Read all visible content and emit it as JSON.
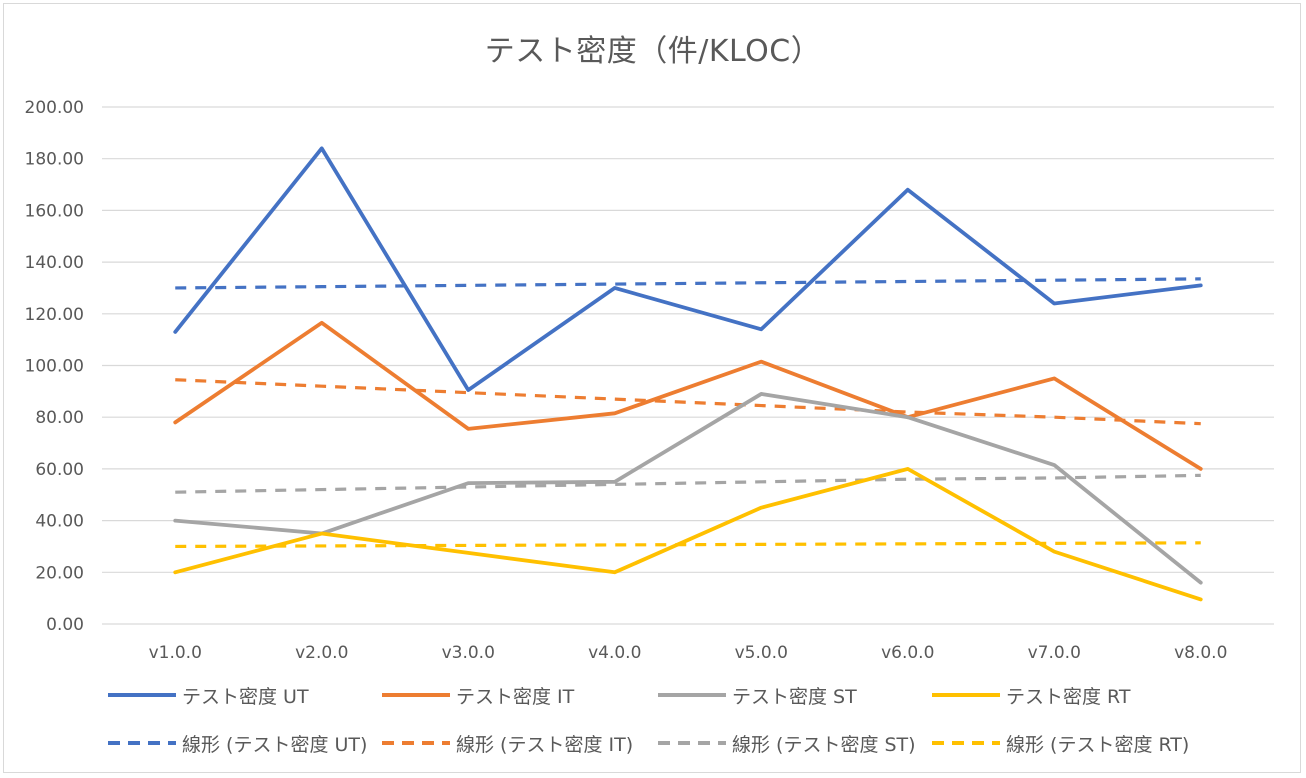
{
  "chart_data": {
    "type": "line",
    "title": "テスト密度（件/KLOC）",
    "xlabel": "",
    "ylabel": "",
    "categories": [
      "v1.0.0",
      "v2.0.0",
      "v3.0.0",
      "v4.0.0",
      "v5.0.0",
      "v6.0.0",
      "v7.0.0",
      "v8.0.0"
    ],
    "ylim": [
      0,
      200
    ],
    "yticks": [
      "0.00",
      "20.00",
      "40.00",
      "60.00",
      "80.00",
      "100.00",
      "120.00",
      "140.00",
      "160.00",
      "180.00",
      "200.00"
    ],
    "grid": true,
    "legend_position": "bottom",
    "series": [
      {
        "name": "テスト密度 UT",
        "color": "#4472c4",
        "style": "solid",
        "values": [
          113,
          184,
          90.5,
          130,
          114,
          168,
          124,
          131
        ]
      },
      {
        "name": "テスト密度 IT",
        "color": "#ed7d31",
        "style": "solid",
        "values": [
          78,
          116.5,
          75.5,
          81.5,
          101.5,
          80,
          95,
          60
        ]
      },
      {
        "name": "テスト密度 ST",
        "color": "#a5a5a5",
        "style": "solid",
        "values": [
          40,
          35,
          54.5,
          55,
          89,
          80,
          61.5,
          16
        ]
      },
      {
        "name": "テスト密度 RT",
        "color": "#ffc000",
        "style": "solid",
        "values": [
          20,
          35,
          27.5,
          20,
          45,
          60,
          28,
          9.5
        ]
      },
      {
        "name": "線形 (テスト密度 UT)",
        "color": "#4472c4",
        "style": "dashed",
        "values": [
          130,
          130.5,
          131,
          131.5,
          132,
          132.5,
          133,
          133.5
        ]
      },
      {
        "name": "線形 (テスト密度 IT)",
        "color": "#ed7d31",
        "style": "dashed",
        "values": [
          94.5,
          92,
          89.5,
          87,
          84.5,
          82,
          80,
          77.5
        ]
      },
      {
        "name": "線形 (テスト密度 ST)",
        "color": "#a5a5a5",
        "style": "dashed",
        "values": [
          51,
          52,
          53,
          54,
          55,
          56,
          56.5,
          57.5
        ]
      },
      {
        "name": "線形 (テスト密度 RT)",
        "color": "#ffc000",
        "style": "dashed",
        "values": [
          30,
          30.2,
          30.4,
          30.6,
          30.8,
          31,
          31.2,
          31.4
        ]
      }
    ]
  }
}
